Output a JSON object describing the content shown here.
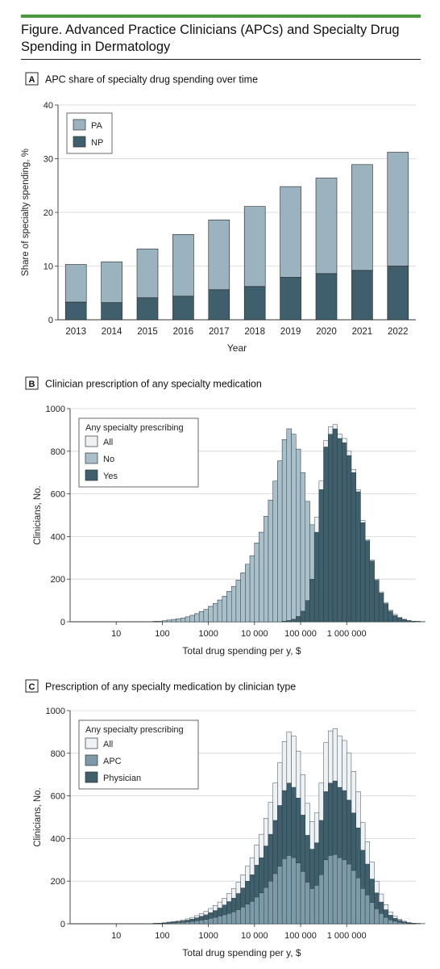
{
  "figure": {
    "title": "Figure. Advanced Practice Clinicians (APCs) and Specialty Drug Spending in Dermatology"
  },
  "colors": {
    "pa": "#9ab3bf",
    "np": "#3f5f6c",
    "all": "#eef2f4",
    "no": "#a9c0ca",
    "yes": "#3f5f6c",
    "apc": "#7c9aa7",
    "physician": "#3f5f6c",
    "accent": "#4a9a3c"
  },
  "chart_data": [
    {
      "panel": "A",
      "type": "bar",
      "stacked": true,
      "title": "APC  share of specialty drug spending over time",
      "xlabel": "Year",
      "ylabel": "Share of specialty spending, %",
      "ylim": [
        0,
        40
      ],
      "yticks": [
        0,
        10,
        20,
        30,
        40
      ],
      "categories": [
        "2013",
        "2014",
        "2015",
        "2016",
        "2017",
        "2018",
        "2019",
        "2020",
        "2021",
        "2022"
      ],
      "series": [
        {
          "name": "NP",
          "values": [
            3.3,
            3.2,
            4.1,
            4.4,
            5.6,
            6.2,
            7.9,
            8.6,
            9.2,
            10.0
          ]
        },
        {
          "name": "PA",
          "values": [
            7.0,
            7.6,
            9.1,
            11.5,
            13.0,
            14.9,
            16.9,
            17.8,
            19.7,
            21.2
          ]
        }
      ],
      "legend": {
        "position": "top-left",
        "entries": [
          "PA",
          "NP"
        ]
      },
      "grid": true
    },
    {
      "panel": "B",
      "type": "bar",
      "subtype": "histogram",
      "title": "Clinician prescription of any specialty medication",
      "xlabel": "Total drug spending per y, $",
      "ylabel": "Clinicians, No.",
      "xscale": "log",
      "ylim": [
        0,
        1000
      ],
      "yticks": [
        0,
        200,
        400,
        600,
        800,
        1000
      ],
      "xticks": [
        10,
        100,
        1000,
        10000,
        100000,
        1000000
      ],
      "xtick_labels": [
        "10",
        "100",
        "1000",
        "10 000",
        "100 000",
        "1 000 000"
      ],
      "legend": {
        "title": "Any specialty prescribing",
        "position": "top-left",
        "entries": [
          "All",
          "No",
          "Yes"
        ]
      },
      "grid": true,
      "bin_log_start": 0.3,
      "bin_log_width": 0.1,
      "series": [
        {
          "name": "All",
          "values": [
            0,
            0,
            0,
            0,
            0,
            0,
            0,
            0,
            0,
            0,
            0,
            0,
            0,
            0,
            1,
            2,
            3,
            5,
            8,
            11,
            14,
            18,
            23,
            30,
            38,
            48,
            58,
            72,
            86,
            102,
            120,
            142,
            166,
            195,
            230,
            270,
            310,
            370,
            420,
            495,
            570,
            660,
            755,
            855,
            905,
            880,
            810,
            700,
            565,
            455,
            490,
            660,
            850,
            915,
            925,
            880,
            860,
            800,
            715,
            620,
            475,
            385,
            290,
            200,
            140,
            90,
            55,
            35,
            22,
            12,
            6,
            3,
            2,
            1,
            0
          ]
        },
        {
          "name": "No",
          "values": [
            0,
            0,
            0,
            0,
            0,
            0,
            0,
            0,
            0,
            0,
            0,
            0,
            0,
            0,
            1,
            2,
            3,
            5,
            8,
            11,
            14,
            18,
            23,
            30,
            38,
            48,
            58,
            72,
            86,
            102,
            120,
            142,
            166,
            195,
            230,
            270,
            310,
            370,
            420,
            495,
            570,
            660,
            755,
            855,
            905,
            880,
            810,
            700,
            565,
            455,
            240,
            140,
            80,
            50,
            40,
            34,
            30,
            27,
            24,
            21,
            18,
            15,
            12,
            9,
            7,
            5,
            4,
            3,
            2,
            1,
            1,
            0,
            0,
            0,
            0
          ]
        },
        {
          "name": "Yes",
          "values": [
            0,
            0,
            0,
            0,
            0,
            0,
            0,
            0,
            0,
            0,
            0,
            0,
            0,
            0,
            0,
            0,
            0,
            0,
            0,
            0,
            0,
            0,
            0,
            0,
            0,
            0,
            0,
            0,
            0,
            0,
            0,
            0,
            0,
            0,
            0,
            0,
            0,
            0,
            0,
            0,
            0,
            0,
            0,
            3,
            6,
            12,
            25,
            50,
            100,
            200,
            420,
            620,
            820,
            880,
            905,
            860,
            840,
            780,
            700,
            610,
            465,
            380,
            285,
            195,
            135,
            85,
            50,
            30,
            18,
            10,
            5,
            3,
            2,
            1,
            0
          ]
        }
      ]
    },
    {
      "panel": "C",
      "type": "bar",
      "subtype": "histogram",
      "title": "Prescription of any specialty medication by clinician type",
      "xlabel": "Total drug spending per y, $",
      "ylabel": "Clinicians, No.",
      "xscale": "log",
      "ylim": [
        0,
        1000
      ],
      "yticks": [
        0,
        200,
        400,
        600,
        800,
        1000
      ],
      "xticks": [
        10,
        100,
        1000,
        10000,
        100000,
        1000000
      ],
      "xtick_labels": [
        "10",
        "100",
        "1000",
        "10 000",
        "100 000",
        "1 000 000"
      ],
      "legend": {
        "title": "Any specialty prescribing",
        "position": "top-left",
        "entries": [
          "All",
          "APC",
          "Physician"
        ]
      },
      "grid": true,
      "bin_log_start": 0.3,
      "bin_log_width": 0.1,
      "series": [
        {
          "name": "All",
          "values": [
            0,
            0,
            0,
            0,
            0,
            0,
            0,
            0,
            0,
            0,
            0,
            0,
            0,
            0,
            1,
            2,
            3,
            5,
            8,
            11,
            14,
            18,
            23,
            30,
            38,
            48,
            58,
            72,
            86,
            102,
            120,
            142,
            166,
            195,
            230,
            270,
            310,
            370,
            420,
            495,
            570,
            660,
            755,
            855,
            900,
            880,
            810,
            700,
            565,
            480,
            520,
            660,
            850,
            905,
            915,
            880,
            860,
            800,
            715,
            620,
            475,
            385,
            290,
            200,
            140,
            90,
            55,
            35,
            22,
            12,
            6,
            3,
            2,
            1,
            0
          ]
        },
        {
          "name": "Physician",
          "values": [
            0,
            0,
            0,
            0,
            0,
            0,
            0,
            0,
            0,
            0,
            0,
            0,
            0,
            0,
            1,
            2,
            2,
            4,
            6,
            8,
            10,
            13,
            17,
            22,
            28,
            35,
            42,
            52,
            62,
            74,
            88,
            104,
            120,
            142,
            168,
            200,
            230,
            275,
            310,
            365,
            420,
            485,
            555,
            625,
            660,
            640,
            590,
            510,
            415,
            350,
            380,
            485,
            620,
            660,
            670,
            640,
            625,
            580,
            520,
            450,
            345,
            280,
            210,
            145,
            102,
            66,
            40,
            26,
            16,
            9,
            4,
            2,
            1,
            0,
            0
          ]
        },
        {
          "name": "APC",
          "values": [
            0,
            0,
            0,
            0,
            0,
            0,
            0,
            0,
            0,
            0,
            0,
            0,
            0,
            0,
            0,
            1,
            1,
            2,
            3,
            4,
            6,
            7,
            9,
            11,
            14,
            17,
            20,
            25,
            30,
            36,
            42,
            48,
            56,
            66,
            78,
            92,
            105,
            125,
            145,
            170,
            200,
            235,
            270,
            305,
            320,
            310,
            285,
            245,
            195,
            165,
            180,
            230,
            300,
            320,
            325,
            310,
            300,
            280,
            250,
            215,
            165,
            135,
            100,
            70,
            48,
            30,
            18,
            12,
            7,
            4,
            2,
            1,
            0,
            0,
            0
          ]
        }
      ]
    }
  ]
}
